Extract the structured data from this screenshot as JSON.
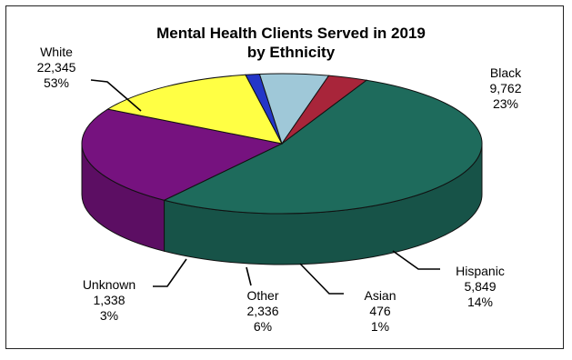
{
  "chart_data": {
    "type": "pie",
    "title_line1": "Mental Health Clients Served in 2019",
    "title_line2": "by Ethnicity",
    "slices": [
      {
        "name": "White",
        "value": 22345,
        "value_label": "22,345",
        "percent_label": "53%",
        "color": "#1e6b5c"
      },
      {
        "name": "Black",
        "value": 9762,
        "value_label": "9,762",
        "percent_label": "23%",
        "color": "#76127f"
      },
      {
        "name": "Hispanic",
        "value": 5849,
        "value_label": "5,849",
        "percent_label": "14%",
        "color": "#ffff44"
      },
      {
        "name": "Asian",
        "value": 476,
        "value_label": "476",
        "percent_label": "1%",
        "color": "#2436c8"
      },
      {
        "name": "Other",
        "value": 2336,
        "value_label": "2,336",
        "percent_label": "6%",
        "color": "#9fc8d8"
      },
      {
        "name": "Unknown",
        "value": 1338,
        "value_label": "1,338",
        "percent_label": "3%",
        "color": "#a8253a"
      }
    ]
  }
}
